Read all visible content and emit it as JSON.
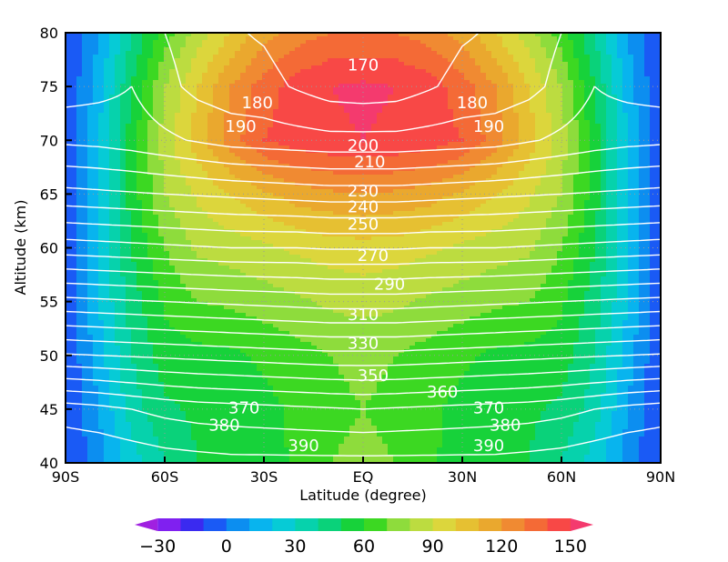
{
  "chart_data": {
    "type": "heatmap",
    "title": "",
    "xlabel": "Latitude (degree)",
    "ylabel": "Altitude (km)",
    "xlim": [
      -90,
      90
    ],
    "ylim": [
      40,
      80
    ],
    "grid": true,
    "x_ticks": [
      {
        "value": -90,
        "label": "90S"
      },
      {
        "value": -60,
        "label": "60S"
      },
      {
        "value": -30,
        "label": "30S"
      },
      {
        "value": 0,
        "label": "EQ"
      },
      {
        "value": 30,
        "label": "30N"
      },
      {
        "value": 60,
        "label": "60N"
      },
      {
        "value": 90,
        "label": "90N"
      }
    ],
    "y_ticks": [
      40,
      45,
      50,
      55,
      60,
      65,
      70,
      75,
      80
    ],
    "latitudes": [
      -90,
      -80,
      -70,
      -60,
      -50,
      -40,
      -30,
      -20,
      -10,
      0,
      10,
      20,
      30,
      40,
      50,
      60,
      70,
      80,
      90
    ],
    "altitudes": [
      40,
      45,
      50,
      55,
      60,
      65,
      70,
      75,
      80
    ],
    "filled_values": [
      [
        -10,
        5,
        25,
        40,
        50,
        55,
        55,
        62,
        70,
        72,
        70,
        62,
        55,
        55,
        50,
        40,
        25,
        5,
        -10
      ],
      [
        -10,
        10,
        35,
        48,
        52,
        55,
        57,
        62,
        68,
        70,
        68,
        62,
        57,
        55,
        52,
        48,
        35,
        10,
        -10
      ],
      [
        -10,
        15,
        40,
        55,
        57,
        58,
        62,
        66,
        70,
        72,
        70,
        66,
        62,
        58,
        57,
        55,
        40,
        15,
        -10
      ],
      [
        -10,
        20,
        45,
        62,
        70,
        72,
        75,
        78,
        82,
        84,
        82,
        78,
        75,
        72,
        70,
        62,
        45,
        20,
        -10
      ],
      [
        -10,
        20,
        50,
        70,
        82,
        85,
        88,
        92,
        95,
        96,
        95,
        92,
        88,
        85,
        82,
        70,
        50,
        20,
        -10
      ],
      [
        -10,
        20,
        55,
        80,
        92,
        100,
        108,
        115,
        118,
        120,
        118,
        115,
        108,
        100,
        92,
        80,
        55,
        20,
        -10
      ],
      [
        -10,
        20,
        55,
        85,
        105,
        125,
        140,
        145,
        148,
        150,
        148,
        145,
        140,
        125,
        105,
        85,
        55,
        20,
        -10
      ],
      [
        -10,
        15,
        50,
        80,
        100,
        120,
        135,
        145,
        150,
        152,
        150,
        145,
        135,
        120,
        100,
        80,
        50,
        15,
        -10
      ],
      [
        -10,
        10,
        40,
        65,
        85,
        100,
        115,
        125,
        130,
        130,
        130,
        125,
        115,
        100,
        85,
        65,
        40,
        10,
        -10
      ]
    ],
    "contour_values": [
      [
        395,
        394,
        392,
        390,
        389,
        388,
        388,
        388,
        388,
        388,
        388,
        388,
        388,
        388,
        389,
        390,
        392,
        394,
        395
      ],
      [
        380,
        378,
        375,
        372,
        370,
        369,
        368,
        367,
        366,
        365,
        366,
        367,
        368,
        369,
        370,
        372,
        375,
        378,
        380
      ],
      [
        336,
        335,
        334,
        333,
        332,
        331,
        330,
        329,
        328,
        328,
        328,
        329,
        330,
        331,
        332,
        333,
        334,
        335,
        336
      ],
      [
        298,
        297,
        296,
        295,
        294,
        293,
        292,
        291,
        290,
        290,
        290,
        291,
        292,
        293,
        294,
        295,
        296,
        297,
        298
      ],
      [
        260,
        259,
        258,
        257,
        256,
        255,
        255,
        255,
        254,
        254,
        254,
        255,
        255,
        255,
        256,
        257,
        258,
        259,
        260
      ],
      [
        228,
        227,
        226,
        225,
        224,
        223,
        222,
        221,
        220,
        220,
        220,
        221,
        222,
        223,
        224,
        225,
        226,
        227,
        228
      ],
      [
        203,
        202,
        200,
        197,
        194,
        191,
        190,
        189,
        188,
        188,
        188,
        189,
        190,
        191,
        194,
        197,
        200,
        202,
        203
      ],
      [
        190,
        192,
        195,
        188,
        182,
        179,
        178,
        174,
        170,
        169,
        170,
        174,
        178,
        179,
        182,
        188,
        195,
        192,
        190
      ],
      [
        185,
        188,
        190,
        185,
        180,
        176,
        174,
        170,
        166,
        165,
        166,
        170,
        174,
        176,
        180,
        185,
        190,
        188,
        185
      ]
    ],
    "contour_labels": [
      {
        "text": "170",
        "lat": 0,
        "alt": 77
      },
      {
        "text": "180",
        "lat": -32,
        "alt": 73.5
      },
      {
        "text": "180",
        "lat": 33,
        "alt": 73.5
      },
      {
        "text": "190",
        "lat": -37,
        "alt": 71.3
      },
      {
        "text": "190",
        "lat": 38,
        "alt": 71.3
      },
      {
        "text": "200",
        "lat": 0,
        "alt": 69.5
      },
      {
        "text": "210",
        "lat": 2,
        "alt": 68
      },
      {
        "text": "230",
        "lat": 0,
        "alt": 65.3
      },
      {
        "text": "240",
        "lat": 0,
        "alt": 63.8
      },
      {
        "text": "250",
        "lat": 0,
        "alt": 62.2
      },
      {
        "text": "270",
        "lat": 3,
        "alt": 59.3
      },
      {
        "text": "290",
        "lat": 8,
        "alt": 56.6
      },
      {
        "text": "310",
        "lat": 0,
        "alt": 53.8
      },
      {
        "text": "330",
        "lat": 0,
        "alt": 51.1
      },
      {
        "text": "350",
        "lat": 3,
        "alt": 48.1
      },
      {
        "text": "360",
        "lat": 24,
        "alt": 46.6
      },
      {
        "text": "370",
        "lat": -36,
        "alt": 45.1
      },
      {
        "text": "370",
        "lat": 38,
        "alt": 45.1
      },
      {
        "text": "380",
        "lat": -42,
        "alt": 43.5
      },
      {
        "text": "380",
        "lat": 43,
        "alt": 43.5
      },
      {
        "text": "390",
        "lat": -18,
        "alt": 41.6
      },
      {
        "text": "390",
        "lat": 38,
        "alt": 41.6
      }
    ],
    "colorbar": {
      "levels": [
        -40,
        -30,
        -20,
        -10,
        0,
        10,
        20,
        30,
        40,
        50,
        60,
        70,
        80,
        90,
        100,
        110,
        120,
        130,
        140,
        150,
        160
      ],
      "colors": [
        "#a020e0",
        "#8020f0",
        "#3a2af0",
        "#1a5af5",
        "#0c8ef0",
        "#08b4ee",
        "#06cbd6",
        "#06d2ac",
        "#0ad27a",
        "#17d23a",
        "#3cd822",
        "#8edc3c",
        "#bcdc40",
        "#dcd63c",
        "#e6c032",
        "#eaa82e",
        "#f08a32",
        "#f46a36",
        "#f84846",
        "#f43a6e"
      ],
      "tick_labels": [
        "−30",
        "0",
        "30",
        "60",
        "90",
        "120",
        "150"
      ],
      "tick_values": [
        -30,
        0,
        30,
        60,
        90,
        120,
        150
      ]
    }
  }
}
